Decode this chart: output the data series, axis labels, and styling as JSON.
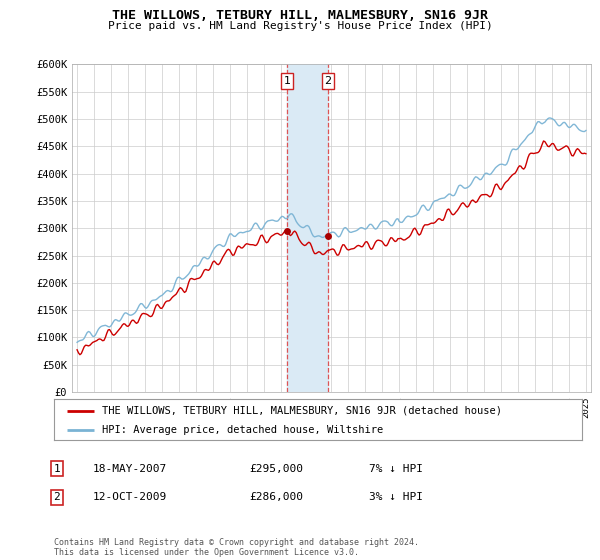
{
  "title": "THE WILLOWS, TETBURY HILL, MALMESBURY, SN16 9JR",
  "subtitle": "Price paid vs. HM Land Registry's House Price Index (HPI)",
  "ylim": [
    0,
    600000
  ],
  "yticks": [
    0,
    50000,
    100000,
    150000,
    200000,
    250000,
    300000,
    350000,
    400000,
    450000,
    500000,
    550000,
    600000
  ],
  "ytick_labels": [
    "£0",
    "£50K",
    "£100K",
    "£150K",
    "£200K",
    "£250K",
    "£300K",
    "£350K",
    "£400K",
    "£450K",
    "£500K",
    "£550K",
    "£600K"
  ],
  "legend_line1": "THE WILLOWS, TETBURY HILL, MALMESBURY, SN16 9JR (detached house)",
  "legend_line2": "HPI: Average price, detached house, Wiltshire",
  "sale1_date": "18-MAY-2007",
  "sale1_price": "£295,000",
  "sale1_hpi": "7% ↓ HPI",
  "sale1_year": 2007.37,
  "sale1_value": 295000,
  "sale2_date": "12-OCT-2009",
  "sale2_price": "£286,000",
  "sale2_hpi": "3% ↓ HPI",
  "sale2_year": 2009.79,
  "sale2_value": 286000,
  "hpi_color": "#7ab3d4",
  "price_color": "#cc0000",
  "marker_color": "#aa0000",
  "highlight_color": "#daeaf5",
  "footer": "Contains HM Land Registry data © Crown copyright and database right 2024.\nThis data is licensed under the Open Government Licence v3.0.",
  "background_color": "#ffffff",
  "grid_color": "#cccccc"
}
